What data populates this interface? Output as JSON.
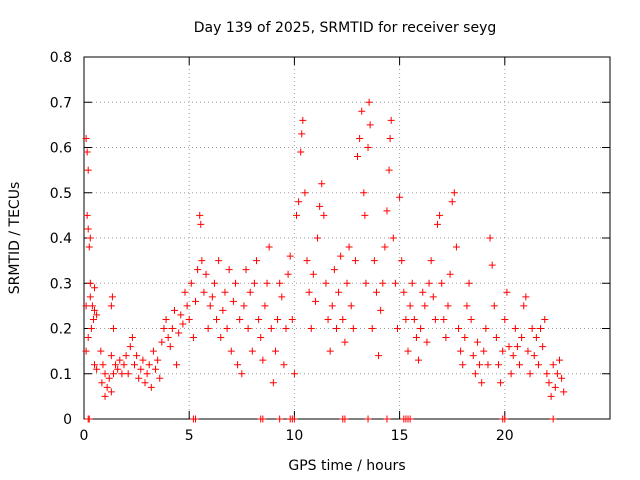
{
  "chart_data": {
    "type": "scatter",
    "title": "Day 139 of 2025, SRMTID for receiver seyg",
    "xlabel": "GPS time / hours",
    "ylabel": "SRMTID / TECUs",
    "xlim": [
      0,
      25
    ],
    "ylim": [
      0,
      0.8
    ],
    "xticks": [
      0,
      5,
      10,
      15,
      20
    ],
    "yticks": [
      0,
      0.1,
      0.2,
      0.3,
      0.4,
      0.5,
      0.6,
      0.7,
      0.8
    ],
    "xtick_labels": [
      "0",
      "5",
      "10",
      "15",
      "20"
    ],
    "ytick_labels": [
      "0",
      "0.1",
      "0.2",
      "0.3",
      "0.4",
      "0.5",
      "0.6",
      "0.7",
      "0.8"
    ],
    "grid": true,
    "marker": "+",
    "color": "#ff0000",
    "series": [
      {
        "name": "SRMTID",
        "points": [
          [
            0.1,
            0.62
          ],
          [
            0.15,
            0.59
          ],
          [
            0.2,
            0.55
          ],
          [
            0.15,
            0.45
          ],
          [
            0.2,
            0.42
          ],
          [
            0.3,
            0.4
          ],
          [
            0.25,
            0.38
          ],
          [
            0.1,
            0.25
          ],
          [
            0.3,
            0.27
          ],
          [
            0.4,
            0.25
          ],
          [
            0.5,
            0.24
          ],
          [
            0.45,
            0.22
          ],
          [
            0.35,
            0.2
          ],
          [
            0.6,
            0.23
          ],
          [
            0.5,
            0.29
          ],
          [
            0.3,
            0.3
          ],
          [
            0.2,
            0.18
          ],
          [
            0.1,
            0.15
          ],
          [
            0.5,
            0.12
          ],
          [
            0.6,
            0.11
          ],
          [
            0.8,
            0.15
          ],
          [
            0.9,
            0.12
          ],
          [
            0.85,
            0.08
          ],
          [
            1.0,
            0.05
          ],
          [
            1.1,
            0.07
          ],
          [
            1.0,
            0.1
          ],
          [
            1.2,
            0.09
          ],
          [
            1.3,
            0.06
          ],
          [
            1.4,
            0.1
          ],
          [
            1.3,
            0.14
          ],
          [
            1.4,
            0.2
          ],
          [
            1.3,
            0.25
          ],
          [
            1.35,
            0.27
          ],
          [
            1.5,
            0.12
          ],
          [
            1.6,
            0.11
          ],
          [
            1.7,
            0.13
          ],
          [
            1.8,
            0.1
          ],
          [
            1.9,
            0.12
          ],
          [
            2.0,
            0.14
          ],
          [
            2.1,
            0.1
          ],
          [
            2.2,
            0.16
          ],
          [
            2.3,
            0.18
          ],
          [
            2.4,
            0.12
          ],
          [
            2.5,
            0.14
          ],
          [
            2.6,
            0.09
          ],
          [
            2.7,
            0.11
          ],
          [
            2.8,
            0.13
          ],
          [
            2.9,
            0.08
          ],
          [
            3.0,
            0.1
          ],
          [
            3.1,
            0.12
          ],
          [
            3.2,
            0.07
          ],
          [
            3.3,
            0.15
          ],
          [
            3.4,
            0.11
          ],
          [
            3.5,
            0.13
          ],
          [
            3.6,
            0.09
          ],
          [
            3.7,
            0.17
          ],
          [
            3.8,
            0.2
          ],
          [
            3.9,
            0.22
          ],
          [
            4.0,
            0.18
          ],
          [
            4.1,
            0.16
          ],
          [
            4.2,
            0.2
          ],
          [
            4.3,
            0.24
          ],
          [
            4.4,
            0.12
          ],
          [
            4.5,
            0.19
          ],
          [
            4.6,
            0.23
          ],
          [
            4.7,
            0.21
          ],
          [
            4.8,
            0.28
          ],
          [
            4.9,
            0.25
          ],
          [
            5.0,
            0.22
          ],
          [
            5.1,
            0.3
          ],
          [
            5.2,
            0.18
          ],
          [
            5.3,
            0.26
          ],
          [
            5.4,
            0.33
          ],
          [
            5.5,
            0.45
          ],
          [
            5.55,
            0.43
          ],
          [
            5.6,
            0.35
          ],
          [
            5.7,
            0.28
          ],
          [
            5.8,
            0.32
          ],
          [
            5.9,
            0.2
          ],
          [
            6.0,
            0.25
          ],
          [
            6.1,
            0.27
          ],
          [
            6.2,
            0.3
          ],
          [
            6.3,
            0.22
          ],
          [
            6.4,
            0.35
          ],
          [
            6.5,
            0.18
          ],
          [
            6.6,
            0.24
          ],
          [
            6.7,
            0.28
          ],
          [
            6.8,
            0.2
          ],
          [
            6.9,
            0.33
          ],
          [
            7.0,
            0.15
          ],
          [
            7.1,
            0.26
          ],
          [
            7.2,
            0.3
          ],
          [
            7.3,
            0.12
          ],
          [
            7.4,
            0.22
          ],
          [
            7.5,
            0.1
          ],
          [
            7.6,
            0.25
          ],
          [
            7.7,
            0.33
          ],
          [
            7.8,
            0.2
          ],
          [
            7.9,
            0.28
          ],
          [
            8.0,
            0.15
          ],
          [
            8.1,
            0.3
          ],
          [
            8.2,
            0.35
          ],
          [
            8.3,
            0.22
          ],
          [
            8.4,
            0.18
          ],
          [
            8.5,
            0.13
          ],
          [
            8.6,
            0.25
          ],
          [
            8.7,
            0.3
          ],
          [
            8.8,
            0.38
          ],
          [
            8.9,
            0.2
          ],
          [
            9.0,
            0.08
          ],
          [
            9.1,
            0.15
          ],
          [
            9.2,
            0.22
          ],
          [
            9.3,
            0.3
          ],
          [
            9.4,
            0.27
          ],
          [
            9.5,
            0.12
          ],
          [
            9.6,
            0.2
          ],
          [
            9.7,
            0.32
          ],
          [
            9.8,
            0.36
          ],
          [
            9.9,
            0.22
          ],
          [
            10.0,
            0.1
          ],
          [
            10.1,
            0.45
          ],
          [
            10.2,
            0.48
          ],
          [
            10.3,
            0.59
          ],
          [
            10.35,
            0.63
          ],
          [
            10.4,
            0.66
          ],
          [
            10.5,
            0.5
          ],
          [
            10.6,
            0.35
          ],
          [
            10.7,
            0.28
          ],
          [
            10.8,
            0.2
          ],
          [
            10.9,
            0.32
          ],
          [
            11.0,
            0.26
          ],
          [
            11.1,
            0.4
          ],
          [
            11.2,
            0.47
          ],
          [
            11.3,
            0.52
          ],
          [
            11.4,
            0.45
          ],
          [
            11.5,
            0.3
          ],
          [
            11.6,
            0.22
          ],
          [
            11.7,
            0.15
          ],
          [
            11.8,
            0.25
          ],
          [
            11.9,
            0.33
          ],
          [
            12.0,
            0.2
          ],
          [
            12.1,
            0.28
          ],
          [
            12.2,
            0.36
          ],
          [
            12.3,
            0.22
          ],
          [
            12.4,
            0.17
          ],
          [
            12.5,
            0.3
          ],
          [
            12.6,
            0.38
          ],
          [
            12.7,
            0.25
          ],
          [
            12.8,
            0.2
          ],
          [
            12.9,
            0.35
          ],
          [
            13.0,
            0.58
          ],
          [
            13.1,
            0.62
          ],
          [
            13.2,
            0.68
          ],
          [
            13.3,
            0.5
          ],
          [
            13.35,
            0.45
          ],
          [
            13.4,
            0.3
          ],
          [
            13.5,
            0.6
          ],
          [
            13.55,
            0.7
          ],
          [
            13.6,
            0.65
          ],
          [
            13.7,
            0.2
          ],
          [
            13.8,
            0.35
          ],
          [
            13.9,
            0.28
          ],
          [
            14.0,
            0.14
          ],
          [
            14.1,
            0.24
          ],
          [
            14.2,
            0.3
          ],
          [
            14.3,
            0.38
          ],
          [
            14.4,
            0.46
          ],
          [
            14.5,
            0.55
          ],
          [
            14.55,
            0.62
          ],
          [
            14.6,
            0.66
          ],
          [
            14.7,
            0.4
          ],
          [
            14.8,
            0.3
          ],
          [
            14.9,
            0.2
          ],
          [
            15.0,
            0.49
          ],
          [
            15.1,
            0.35
          ],
          [
            15.2,
            0.28
          ],
          [
            15.3,
            0.22
          ],
          [
            15.4,
            0.15
          ],
          [
            15.5,
            0.25
          ],
          [
            15.6,
            0.3
          ],
          [
            15.7,
            0.22
          ],
          [
            15.8,
            0.18
          ],
          [
            15.9,
            0.13
          ],
          [
            16.0,
            0.2
          ],
          [
            16.1,
            0.28
          ],
          [
            16.2,
            0.25
          ],
          [
            16.3,
            0.17
          ],
          [
            16.4,
            0.3
          ],
          [
            16.5,
            0.35
          ],
          [
            16.6,
            0.27
          ],
          [
            16.7,
            0.22
          ],
          [
            16.8,
            0.43
          ],
          [
            16.9,
            0.45
          ],
          [
            17.0,
            0.3
          ],
          [
            17.1,
            0.22
          ],
          [
            17.2,
            0.18
          ],
          [
            17.3,
            0.25
          ],
          [
            17.4,
            0.32
          ],
          [
            17.5,
            0.48
          ],
          [
            17.6,
            0.5
          ],
          [
            17.7,
            0.38
          ],
          [
            17.8,
            0.2
          ],
          [
            17.9,
            0.15
          ],
          [
            18.0,
            0.12
          ],
          [
            18.1,
            0.18
          ],
          [
            18.2,
            0.25
          ],
          [
            18.3,
            0.3
          ],
          [
            18.4,
            0.22
          ],
          [
            18.5,
            0.14
          ],
          [
            18.6,
            0.1
          ],
          [
            18.7,
            0.17
          ],
          [
            18.8,
            0.12
          ],
          [
            18.9,
            0.08
          ],
          [
            19.0,
            0.15
          ],
          [
            19.1,
            0.2
          ],
          [
            19.2,
            0.12
          ],
          [
            19.3,
            0.4
          ],
          [
            19.4,
            0.34
          ],
          [
            19.5,
            0.25
          ],
          [
            19.6,
            0.18
          ],
          [
            19.7,
            0.12
          ],
          [
            19.8,
            0.08
          ],
          [
            19.9,
            0.15
          ],
          [
            20.0,
            0.22
          ],
          [
            20.1,
            0.28
          ],
          [
            20.2,
            0.16
          ],
          [
            20.3,
            0.1
          ],
          [
            20.4,
            0.14
          ],
          [
            20.5,
            0.2
          ],
          [
            20.6,
            0.16
          ],
          [
            20.7,
            0.12
          ],
          [
            20.8,
            0.18
          ],
          [
            20.9,
            0.25
          ],
          [
            21.0,
            0.27
          ],
          [
            21.1,
            0.15
          ],
          [
            21.2,
            0.1
          ],
          [
            21.3,
            0.2
          ],
          [
            21.4,
            0.14
          ],
          [
            21.5,
            0.18
          ],
          [
            21.6,
            0.12
          ],
          [
            21.7,
            0.2
          ],
          [
            21.8,
            0.16
          ],
          [
            21.9,
            0.22
          ],
          [
            22.0,
            0.1
          ],
          [
            22.1,
            0.08
          ],
          [
            22.2,
            0.05
          ],
          [
            22.3,
            0.12
          ],
          [
            22.4,
            0.07
          ],
          [
            22.5,
            0.1
          ],
          [
            22.6,
            0.13
          ],
          [
            22.7,
            0.09
          ],
          [
            22.8,
            0.06
          ],
          [
            0.2,
            0.0
          ],
          [
            0.25,
            0.0
          ],
          [
            5.2,
            0.0
          ],
          [
            5.3,
            0.0
          ],
          [
            8.4,
            0.0
          ],
          [
            8.5,
            0.0
          ],
          [
            9.3,
            0.0
          ],
          [
            9.8,
            0.0
          ],
          [
            9.9,
            0.0
          ],
          [
            10.0,
            0.0
          ],
          [
            12.3,
            0.0
          ],
          [
            12.4,
            0.0
          ],
          [
            13.5,
            0.0
          ],
          [
            14.4,
            0.0
          ],
          [
            15.2,
            0.0
          ],
          [
            15.3,
            0.0
          ],
          [
            15.4,
            0.0
          ],
          [
            15.5,
            0.0
          ],
          [
            19.9,
            0.0
          ],
          [
            20.0,
            0.0
          ],
          [
            22.3,
            0.0
          ]
        ]
      }
    ]
  }
}
